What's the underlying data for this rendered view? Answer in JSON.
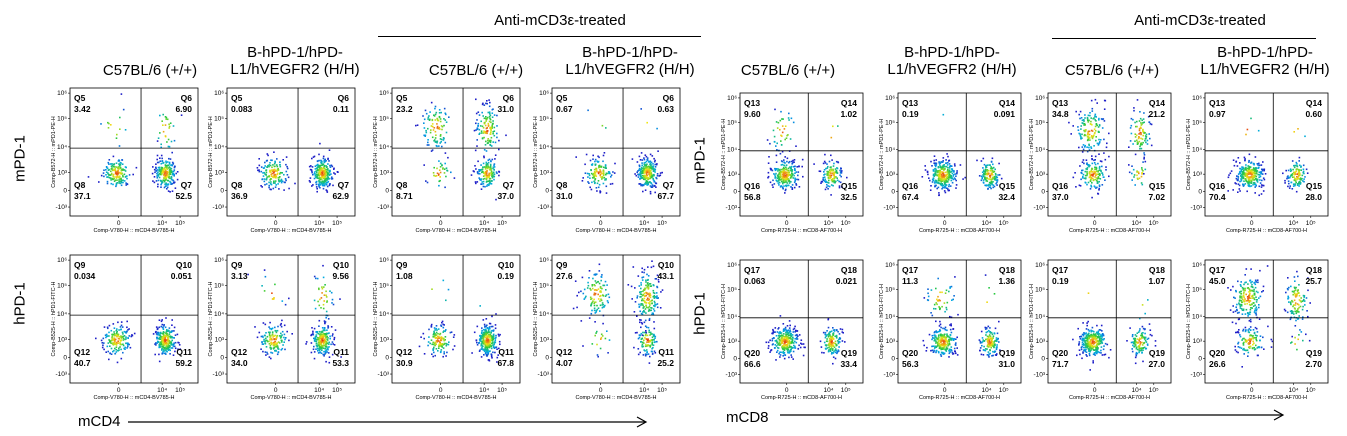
{
  "panels": [
    {
      "id": "cd4",
      "treated_label": "Anti-mCD3ε-treated",
      "columns": [
        "C57BL/6 (+/+)",
        "B-hPD-1/hPD-L1/hVEGFR2 (H/H)",
        "C57BL/6 (+/+)",
        "B-hPD-1/hPD-L1/hVEGFR2 (H/H)"
      ],
      "row_labels": [
        "mPD-1",
        "hPD-1"
      ],
      "x_axis_label": "mCD4"
    },
    {
      "id": "cd8",
      "treated_label": "Anti-mCD3ε-treated",
      "columns": [
        "C57BL/6 (+/+)",
        "B-hPD-1/hPD-L1/hVEGFR2 (H/H)",
        "C57BL/6 (+/+)",
        "B-hPD-1/hPD-L1/hVEGFR2 (H/H)"
      ],
      "row_labels": [
        "mPD-1",
        "hPD-1"
      ],
      "x_axis_label": "mCD8"
    }
  ],
  "chart_data": [
    {
      "type": "scatter",
      "panel": "cd4",
      "x_axis_title": "Comp-V780-H :: mCD4-BV785-H",
      "y_axis_titles": [
        "Comp-B572-H :: mPD1-PE-H",
        "Comp-B525-H :: hPD1-FITC-H"
      ],
      "x_ticks": [
        "0",
        "10⁴",
        "10⁵"
      ],
      "y_ticks": [
        "10⁶",
        "10⁵",
        "10⁴",
        "10³",
        "0",
        "-10³"
      ],
      "plots": [
        {
          "row": 0,
          "col": 0,
          "gates": {
            "Q5": 3.42,
            "Q6": 6.9,
            "Q7": 52.5,
            "Q8": 37.1
          },
          "gate_names": [
            "Q5",
            "Q6",
            "Q7",
            "Q8"
          ],
          "gate_values": [
            "3.42",
            "6.90",
            "52.5",
            "37.1"
          ]
        },
        {
          "row": 0,
          "col": 1,
          "gates": {
            "Q5": 0.083,
            "Q6": 0.11,
            "Q7": 62.9,
            "Q8": 36.9
          },
          "gate_names": [
            "Q5",
            "Q6",
            "Q7",
            "Q8"
          ],
          "gate_values": [
            "0.083",
            "0.11",
            "62.9",
            "36.9"
          ]
        },
        {
          "row": 0,
          "col": 2,
          "gates": {
            "Q5": 23.2,
            "Q6": 31.0,
            "Q7": 37.0,
            "Q8": 8.71
          },
          "gate_names": [
            "Q5",
            "Q6",
            "Q7",
            "Q8"
          ],
          "gate_values": [
            "23.2",
            "31.0",
            "37.0",
            "8.71"
          ]
        },
        {
          "row": 0,
          "col": 3,
          "gates": {
            "Q5": 0.67,
            "Q6": 0.63,
            "Q7": 67.7,
            "Q8": 31.0
          },
          "gate_names": [
            "Q5",
            "Q6",
            "Q7",
            "Q8"
          ],
          "gate_values": [
            "0.67",
            "0.63",
            "67.7",
            "31.0"
          ]
        },
        {
          "row": 1,
          "col": 0,
          "gates": {
            "Q9": 0.034,
            "Q10": 0.051,
            "Q11": 59.2,
            "Q12": 40.7
          },
          "gate_names": [
            "Q9",
            "Q10",
            "Q11",
            "Q12"
          ],
          "gate_values": [
            "0.034",
            "0.051",
            "59.2",
            "40.7"
          ]
        },
        {
          "row": 1,
          "col": 1,
          "gates": {
            "Q9": 3.13,
            "Q10": 9.56,
            "Q11": 53.3,
            "Q12": 34.0
          },
          "gate_names": [
            "Q9",
            "Q10",
            "Q11",
            "Q12"
          ],
          "gate_values": [
            "3.13",
            "9.56",
            "53.3",
            "34.0"
          ]
        },
        {
          "row": 1,
          "col": 2,
          "gates": {
            "Q9": 1.08,
            "Q10": 0.19,
            "Q11": 67.8,
            "Q12": 30.9
          },
          "gate_names": [
            "Q9",
            "Q10",
            "Q11",
            "Q12"
          ],
          "gate_values": [
            "1.08",
            "0.19",
            "67.8",
            "30.9"
          ]
        },
        {
          "row": 1,
          "col": 3,
          "gates": {
            "Q9": 27.6,
            "Q10": 43.1,
            "Q11": 25.2,
            "Q12": 4.07
          },
          "gate_names": [
            "Q9",
            "Q10",
            "Q11",
            "Q12"
          ],
          "gate_values": [
            "27.6",
            "43.1",
            "25.2",
            "4.07"
          ]
        }
      ]
    },
    {
      "type": "scatter",
      "panel": "cd8",
      "x_axis_title": "Comp-R725-H :: mCD8-AF700-H",
      "y_axis_titles": [
        "Comp-B572-H :: mPD1-PE-H",
        "Comp-B525-H :: hPD1-FITC-H"
      ],
      "x_ticks": [
        "0",
        "10⁴",
        "10⁵"
      ],
      "y_ticks": [
        "10⁶",
        "10⁵",
        "10⁴",
        "10³",
        "0",
        "-10³"
      ],
      "plots": [
        {
          "row": 0,
          "col": 0,
          "gates": {
            "Q13": 9.6,
            "Q14": 1.02,
            "Q15": 32.5,
            "Q16": 56.8
          },
          "gate_names": [
            "Q13",
            "Q14",
            "Q15",
            "Q16"
          ],
          "gate_values": [
            "9.60",
            "1.02",
            "32.5",
            "56.8"
          ]
        },
        {
          "row": 0,
          "col": 1,
          "gates": {
            "Q13": 0.19,
            "Q14": 0.091,
            "Q15": 32.4,
            "Q16": 67.4
          },
          "gate_names": [
            "Q13",
            "Q14",
            "Q15",
            "Q16"
          ],
          "gate_values": [
            "0.19",
            "0.091",
            "32.4",
            "67.4"
          ]
        },
        {
          "row": 0,
          "col": 2,
          "gates": {
            "Q13": 34.8,
            "Q14": 21.2,
            "Q15": 7.02,
            "Q16": 37.0
          },
          "gate_names": [
            "Q13",
            "Q14",
            "Q15",
            "Q16"
          ],
          "gate_values": [
            "34.8",
            "21.2",
            "7.02",
            "37.0"
          ]
        },
        {
          "row": 0,
          "col": 3,
          "gates": {
            "Q13": 0.97,
            "Q14": 0.6,
            "Q15": 28.0,
            "Q16": 70.4
          },
          "gate_names": [
            "Q13",
            "Q14",
            "Q15",
            "Q16"
          ],
          "gate_values": [
            "0.97",
            "0.60",
            "28.0",
            "70.4"
          ]
        },
        {
          "row": 1,
          "col": 0,
          "gates": {
            "Q17": 0.063,
            "Q18": 0.021,
            "Q19": 33.4,
            "Q20": 66.6
          },
          "gate_names": [
            "Q17",
            "Q18",
            "Q19",
            "Q20"
          ],
          "gate_values": [
            "0.063",
            "0.021",
            "33.4",
            "66.6"
          ]
        },
        {
          "row": 1,
          "col": 1,
          "gates": {
            "Q17": 11.3,
            "Q18": 1.36,
            "Q19": 31.0,
            "Q20": 56.3
          },
          "gate_names": [
            "Q17",
            "Q18",
            "Q19",
            "Q20"
          ],
          "gate_values": [
            "11.3",
            "1.36",
            "31.0",
            "56.3"
          ]
        },
        {
          "row": 1,
          "col": 2,
          "gates": {
            "Q17": 0.19,
            "Q18": 1.07,
            "Q19": 27.0,
            "Q20": 71.7
          },
          "gate_names": [
            "Q17",
            "Q18",
            "Q19",
            "Q20"
          ],
          "gate_values": [
            "0.19",
            "1.07",
            "27.0",
            "71.7"
          ]
        },
        {
          "row": 1,
          "col": 3,
          "gates": {
            "Q17": 45.0,
            "Q18": 25.7,
            "Q19": 2.7,
            "Q20": 26.6
          },
          "gate_names": [
            "Q17",
            "Q18",
            "Q19",
            "Q20"
          ],
          "gate_values": [
            "45.0",
            "25.7",
            "2.70",
            "26.6"
          ]
        }
      ]
    }
  ]
}
